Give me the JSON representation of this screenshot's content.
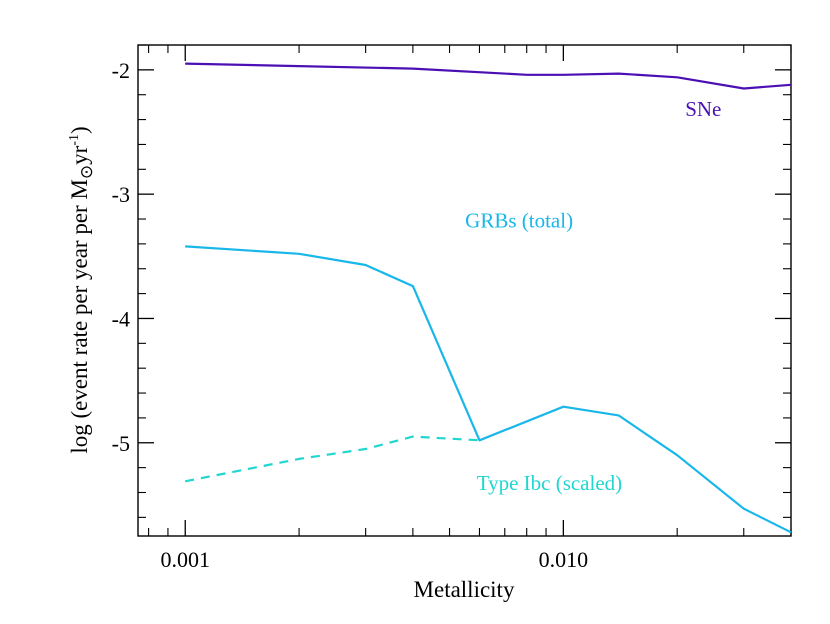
{
  "chart_data": {
    "type": "line",
    "xlabel": "Metallicity",
    "ylabel_main": "log (event rate per year per M",
    "ylabel_symbol": "⊙",
    "ylabel_unit": "yr",
    "ylabel_sup": "-1",
    "ylabel_close": ")",
    "xscale": "log",
    "xlim": [
      0.00075,
      0.04
    ],
    "ylim": [
      -5.75,
      -1.8
    ],
    "xticks": [
      {
        "value": 0.001,
        "label": "0.001"
      },
      {
        "value": 0.01,
        "label": "0.010"
      }
    ],
    "yticks": [
      {
        "value": -2,
        "label": "-2"
      },
      {
        "value": -3,
        "label": "-3"
      },
      {
        "value": -4,
        "label": "-4"
      },
      {
        "value": -5,
        "label": "-5"
      }
    ],
    "series": [
      {
        "name": "SNe",
        "color": "#4B0FB4",
        "style": "solid",
        "x": [
          0.001,
          0.002,
          0.004,
          0.008,
          0.01,
          0.014,
          0.02,
          0.03,
          0.04
        ],
        "y": [
          -1.95,
          -1.97,
          -1.99,
          -2.04,
          -2.04,
          -2.03,
          -2.06,
          -2.15,
          -2.12
        ]
      },
      {
        "name": "GRBs (total)",
        "color": "#19B7E9",
        "style": "solid",
        "x": [
          0.001,
          0.002,
          0.003,
          0.004,
          0.006,
          0.01,
          0.014,
          0.02,
          0.03,
          0.04
        ],
        "y": [
          -3.42,
          -3.48,
          -3.57,
          -3.74,
          -4.98,
          -4.71,
          -4.78,
          -5.1,
          -5.53,
          -5.72
        ]
      },
      {
        "name": "Type Ibc (scaled)",
        "color": "#21D6D0",
        "style": "dashed",
        "x": [
          0.001,
          0.002,
          0.003,
          0.004,
          0.006
        ],
        "y": [
          -5.31,
          -5.13,
          -5.05,
          -4.95,
          -4.98
        ]
      }
    ],
    "labels": [
      {
        "text": "SNe",
        "color": "#4B0FB4",
        "x": 0.021,
        "y": -2.37
      },
      {
        "text": "GRBs (total)",
        "color": "#19B7E9",
        "x": 0.0055,
        "y": -3.27
      },
      {
        "text": "Type Ibc (scaled)",
        "color": "#21D6D0",
        "x": 0.0059,
        "y": -5.38
      }
    ]
  }
}
